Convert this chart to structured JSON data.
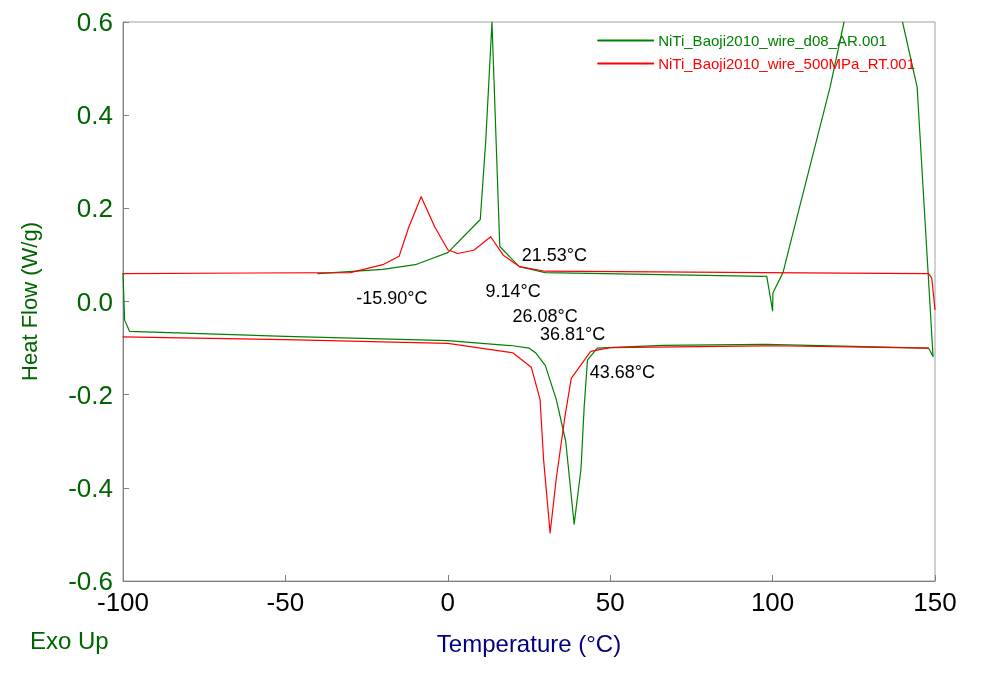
{
  "chart_data": {
    "type": "line",
    "xlabel": "Temperature (°C)",
    "ylabel": "Heat Flow (W/g)",
    "xlim": [
      -100,
      150
    ],
    "xticks": [
      -100,
      -50,
      0,
      50,
      100,
      150
    ],
    "ylim": [
      -0.6,
      0.6
    ],
    "yticks": [
      -0.6,
      -0.4,
      -0.2,
      {
        "value": 0,
        "label": "0.0"
      },
      0.2,
      0.4,
      0.6
    ],
    "grid": false,
    "legend": "top right",
    "marker": "none",
    "line_style": "solid",
    "series": [
      {
        "name": "NiTi_Baoji2010_wire_d08_AR.001",
        "color": "#008000",
        "x": [
          -100,
          -99.5,
          -98,
          -50,
          0,
          20,
          25,
          27,
          30,
          33.4,
          36.3,
          38.9,
          41,
          42,
          43,
          46,
          66,
          98,
          148,
          149.4,
          144.5,
          140,
          null,
          122,
          117.7,
          106.3,
          103.2,
          100.1,
          100,
          98.2,
          30,
          22,
          16,
          13.6,
          11.7,
          10,
          0,
          -10,
          -20,
          -40
        ],
        "values": [
          0.06,
          -0.04,
          -0.064,
          -0.075,
          -0.084,
          -0.095,
          -0.1,
          -0.11,
          -0.137,
          -0.21,
          -0.3,
          -0.478,
          -0.36,
          -0.225,
          -0.126,
          -0.1,
          -0.094,
          -0.092,
          -0.1,
          -0.118,
          0.46,
          0.6,
          null,
          0.6,
          0.46,
          0.148,
          0.062,
          0.019,
          -0.02,
          0.054,
          0.062,
          0.075,
          0.118,
          0.6,
          0.347,
          0.176,
          0.105,
          0.079,
          0.069,
          0.06
        ]
      },
      {
        "name": "NiTi_Baoji2010_wire_500MPa_RT.001",
        "color": "#ff0000",
        "x": [
          -100,
          -30,
          -20,
          -15,
          -12,
          -8.2,
          -4,
          0,
          3,
          8,
          13.2,
          17,
          22,
          30,
          148,
          149,
          150
        ],
        "values": [
          0.06,
          0.062,
          0.079,
          0.097,
          0.16,
          0.225,
          0.16,
          0.111,
          0.103,
          0.11,
          0.139,
          0.1,
          0.075,
          0.065,
          0.06,
          0.05,
          -0.017
        ]
      },
      {
        "color": "#ff0000",
        "x": [
          148,
          100,
          50,
          44,
          38,
          36,
          33.4,
          31.5,
          29.5,
          28.4,
          25.7,
          20,
          0,
          -50,
          -100
        ],
        "values": [
          -0.1,
          -0.095,
          -0.099,
          -0.107,
          -0.165,
          -0.25,
          -0.38,
          -0.497,
          -0.34,
          -0.21,
          -0.141,
          -0.11,
          -0.09,
          -0.082,
          -0.076
        ]
      }
    ],
    "annotations": [
      {
        "text": "-15.90°C",
        "x": -15.9,
        "y": 0.067
      },
      {
        "text": "9.14°C",
        "x": 9.14,
        "y": 0.115
      },
      {
        "text": "21.53°C",
        "x": 21.53,
        "y": 0.07
      },
      {
        "text": "26.08°C",
        "x": 26.08,
        "y": -0.095
      },
      "36.81°C",
      {
        "text": "43.68°C",
        "x": 43.68,
        "y": -0.1
      },
      "Exo Up"
    ]
  }
}
